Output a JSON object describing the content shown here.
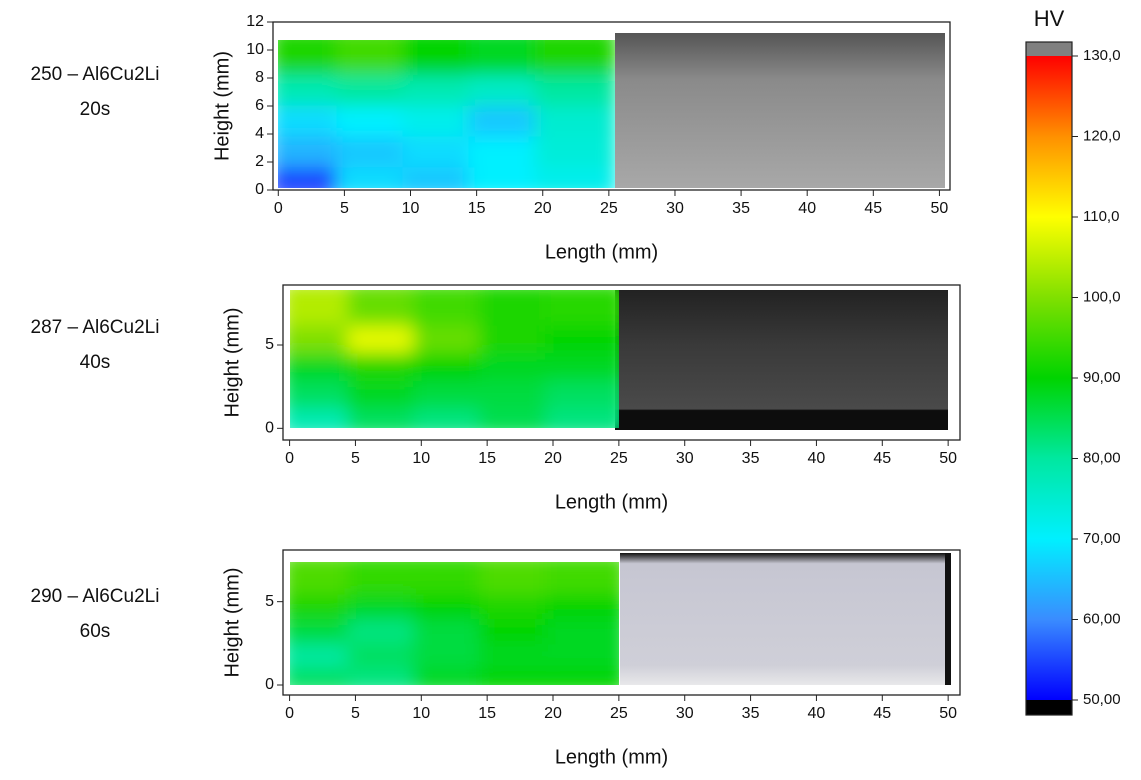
{
  "chart_data": [
    {
      "type": "heatmap",
      "sample_label": [
        "250 – Al6Cu2Li",
        "20s"
      ],
      "x_label": "Length (mm)",
      "y_label": "Height (mm)",
      "xlim": [
        -0.4,
        50.8
      ],
      "ylim": [
        0,
        12
      ],
      "xticks": [
        0,
        5,
        10,
        15,
        20,
        25,
        30,
        35,
        40,
        45,
        50
      ],
      "yticks": [
        0,
        2,
        4,
        6,
        8,
        10,
        12
      ],
      "x_edges": [
        0,
        5,
        10,
        15,
        20,
        25
      ],
      "y_edges": [
        0,
        2.2,
        4.4,
        6.6,
        8.8,
        11
      ],
      "z": [
        [
          55,
          68,
          66,
          70,
          72
        ],
        [
          64,
          66,
          68,
          70,
          74
        ],
        [
          68,
          70,
          72,
          66,
          75
        ],
        [
          78,
          80,
          78,
          76,
          80
        ],
        [
          92,
          95,
          90,
          88,
          92
        ]
      ]
    },
    {
      "type": "heatmap",
      "sample_label": [
        "287 – Al6Cu2Li",
        "40s"
      ],
      "x_label": "Length (mm)",
      "y_label": "Height (mm)",
      "xlim": [
        -0.5,
        50.9
      ],
      "ylim": [
        -0.7,
        8.6
      ],
      "xticks": [
        0,
        5,
        10,
        15,
        20,
        25,
        30,
        35,
        40,
        45,
        50
      ],
      "yticks": [
        0,
        5
      ],
      "x_edges": [
        0,
        5,
        10,
        15,
        20,
        25
      ],
      "y_edges": [
        0,
        1.66,
        3.32,
        4.98,
        6.64,
        8.3
      ],
      "z": [
        [
          78,
          84,
          82,
          85,
          82
        ],
        [
          84,
          88,
          86,
          86,
          84
        ],
        [
          88,
          92,
          90,
          88,
          88
        ],
        [
          100,
          108,
          98,
          92,
          90
        ],
        [
          104,
          98,
          95,
          92,
          93
        ]
      ]
    },
    {
      "type": "heatmap",
      "sample_label": [
        "290 – Al6Cu2Li",
        "60s"
      ],
      "x_label": "Length (mm)",
      "y_label": "Height (mm)",
      "xlim": [
        -0.5,
        50.9
      ],
      "ylim": [
        -0.6,
        8.1
      ],
      "xticks": [
        0,
        5,
        10,
        15,
        20,
        25,
        30,
        35,
        40,
        45,
        50
      ],
      "yticks": [
        0,
        5
      ],
      "x_edges": [
        0,
        5,
        10,
        15,
        20,
        25
      ],
      "y_edges": [
        0,
        1.48,
        2.96,
        4.44,
        5.92,
        7.4
      ],
      "z": [
        [
          84,
          82,
          88,
          90,
          90
        ],
        [
          80,
          84,
          86,
          88,
          88
        ],
        [
          86,
          82,
          86,
          90,
          88
        ],
        [
          92,
          88,
          90,
          92,
          90
        ],
        [
          96,
          94,
          94,
          96,
          95
        ]
      ]
    },
    {
      "type": "colorbar",
      "label": "HV",
      "zlim": [
        50,
        130
      ],
      "colormap": [
        "#0000ff",
        "#3a8cff",
        "#00f0ff",
        "#00e8a0",
        "#00d400",
        "#80e000",
        "#ffff00",
        "#ff9000",
        "#ff0000"
      ],
      "ticks": [
        {
          "value": 130,
          "label": "130,0"
        },
        {
          "value": 120,
          "label": "120,0"
        },
        {
          "value": 110,
          "label": "110,0"
        },
        {
          "value": 100,
          "label": "100,0"
        },
        {
          "value": 90,
          "label": "90,00"
        },
        {
          "value": 80,
          "label": "80,00"
        },
        {
          "value": 70,
          "label": "70,00"
        },
        {
          "value": 60,
          "label": "60,00"
        },
        {
          "value": 50,
          "label": "50,00"
        }
      ]
    }
  ]
}
